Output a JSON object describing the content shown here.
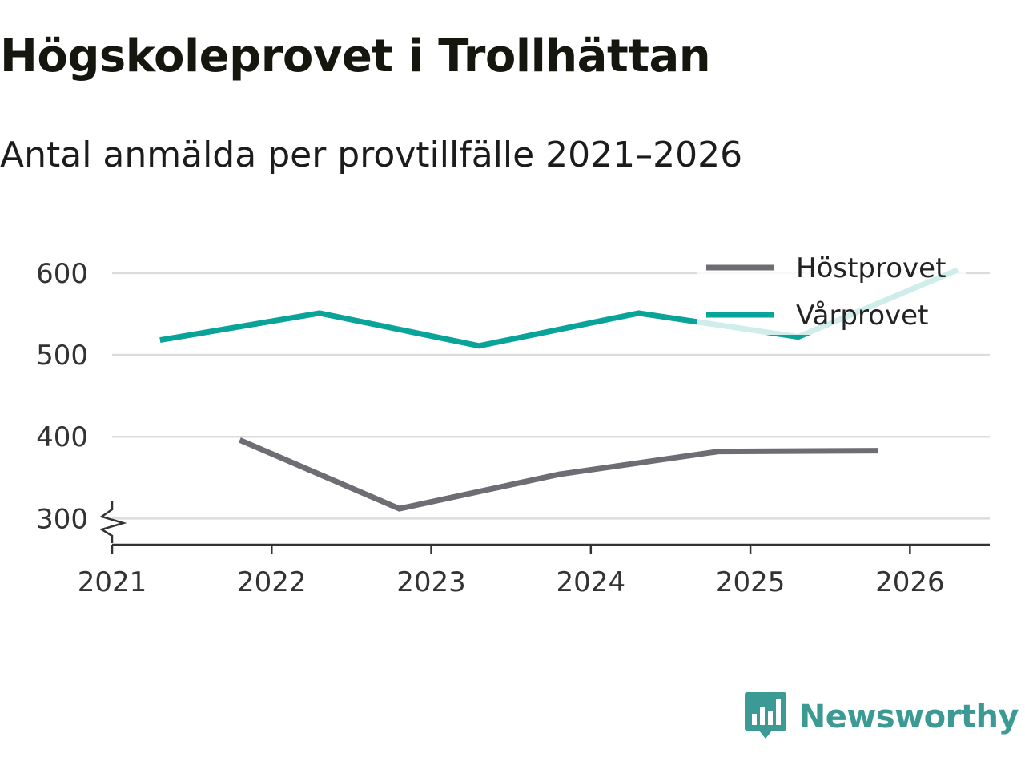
{
  "title": "Högskoleprovet i Trollhättan",
  "subtitle": "Antal anmälda per provtillfälle 2021–2026",
  "brand": {
    "name": "Newsworthy",
    "icon": "bar-chart-icon"
  },
  "colors": {
    "host": "#6d6d73",
    "var": "#0aa39a",
    "grid": "#dcdcdc",
    "axis": "#333333",
    "brand": "#3b9a93"
  },
  "chart_data": {
    "type": "line",
    "title": "Högskoleprovet i Trollhättan",
    "subtitle": "Antal anmälda per provtillfälle 2021–2026",
    "xlabel": "",
    "ylabel": "",
    "xlim": [
      2021,
      2026.5
    ],
    "ylim": [
      270,
      640
    ],
    "x_ticks": [
      2021,
      2022,
      2023,
      2024,
      2025,
      2026
    ],
    "x_tick_labels": [
      "2021",
      "2022",
      "2023",
      "2024",
      "2025",
      "2026"
    ],
    "y_ticks": [
      300,
      400,
      500,
      600
    ],
    "y_tick_labels": [
      "300",
      "400",
      "500",
      "600"
    ],
    "y_axis_break": true,
    "grid": true,
    "legend_position": "top-right",
    "series": [
      {
        "name": "Höstprovet",
        "color": "#6d6d73",
        "x": [
          2021.8,
          2022.8,
          2023.8,
          2024.8,
          2025.8
        ],
        "y": [
          396,
          312,
          354,
          382,
          383
        ]
      },
      {
        "name": "Vårprovet",
        "color": "#0aa39a",
        "x": [
          2021.3,
          2022.3,
          2023.3,
          2024.3,
          2025.3,
          2026.3
        ],
        "y": [
          518,
          551,
          511,
          551,
          522,
          604
        ]
      }
    ]
  }
}
